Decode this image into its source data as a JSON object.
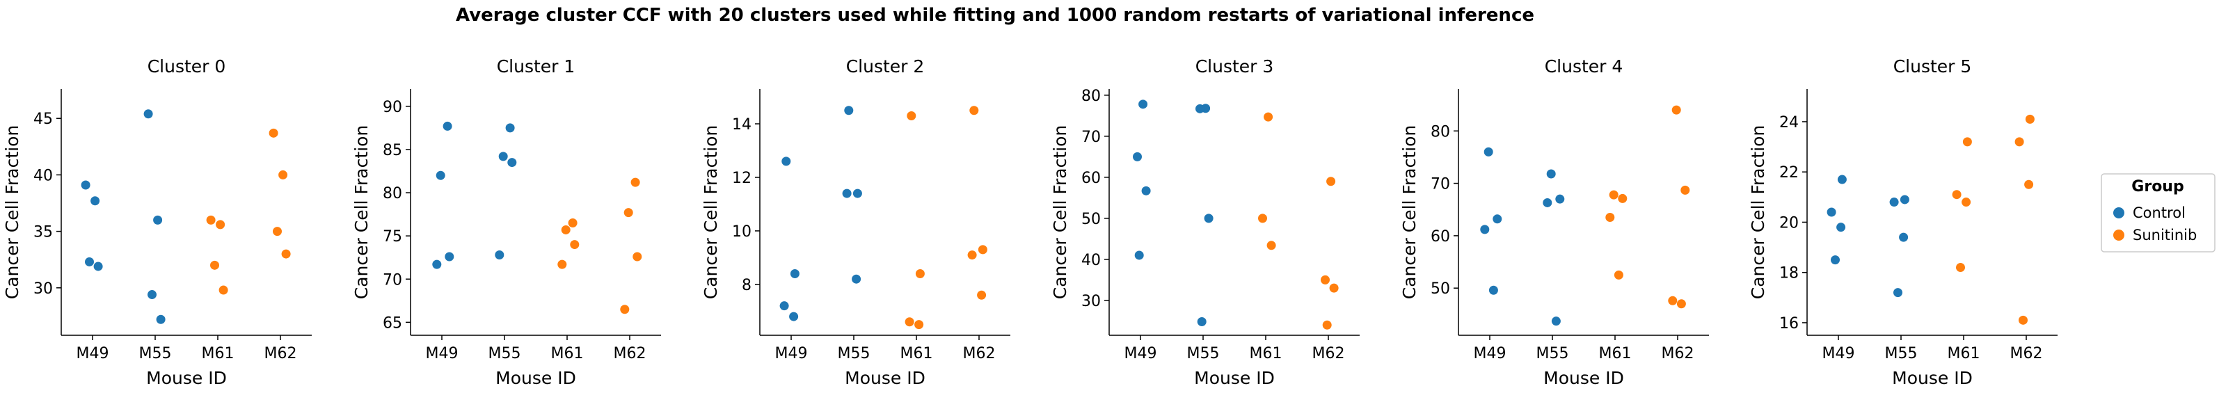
{
  "suptitle": "Average cluster CCF with 20 clusters used while fitting and 1000 random restarts of variational inference",
  "colors": {
    "Control": "#1f77b4",
    "Sunitinib": "#ff7f0e"
  },
  "legend": {
    "title": "Group",
    "placement": "right",
    "entries": [
      {
        "label": "Control",
        "color": "#1f77b4"
      },
      {
        "label": "Sunitinib",
        "color": "#ff7f0e"
      }
    ]
  },
  "chart_data": [
    {
      "type": "scatter",
      "title": "Cluster 0",
      "xlabel": "Mouse ID",
      "ylabel": "Cancer Cell Fraction",
      "categories": [
        "M49",
        "M55",
        "M61",
        "M62"
      ],
      "ylim": [
        25.8,
        47.6
      ],
      "yticks": [
        30,
        35,
        40,
        45
      ],
      "grid": false,
      "points": [
        {
          "category": "M49",
          "group": "Control",
          "y": 39.1
        },
        {
          "category": "M49",
          "group": "Control",
          "y": 37.7
        },
        {
          "category": "M49",
          "group": "Control",
          "y": 32.3
        },
        {
          "category": "M49",
          "group": "Control",
          "y": 31.9
        },
        {
          "category": "M55",
          "group": "Control",
          "y": 45.4
        },
        {
          "category": "M55",
          "group": "Control",
          "y": 36.0
        },
        {
          "category": "M55",
          "group": "Control",
          "y": 29.4
        },
        {
          "category": "M55",
          "group": "Control",
          "y": 27.2
        },
        {
          "category": "M61",
          "group": "Sunitinib",
          "y": 36.0
        },
        {
          "category": "M61",
          "group": "Sunitinib",
          "y": 35.6
        },
        {
          "category": "M61",
          "group": "Sunitinib",
          "y": 32.0
        },
        {
          "category": "M61",
          "group": "Sunitinib",
          "y": 29.8
        },
        {
          "category": "M62",
          "group": "Sunitinib",
          "y": 43.7
        },
        {
          "category": "M62",
          "group": "Sunitinib",
          "y": 40.0
        },
        {
          "category": "M62",
          "group": "Sunitinib",
          "y": 35.0
        },
        {
          "category": "M62",
          "group": "Sunitinib",
          "y": 33.0
        }
      ]
    },
    {
      "type": "scatter",
      "title": "Cluster 1",
      "xlabel": "Mouse ID",
      "ylabel": "Cancer Cell Fraction",
      "categories": [
        "M49",
        "M55",
        "M61",
        "M62"
      ],
      "ylim": [
        63.5,
        92.0
      ],
      "yticks": [
        65,
        70,
        75,
        80,
        85,
        90
      ],
      "grid": false,
      "points": [
        {
          "category": "M49",
          "group": "Control",
          "y": 87.7
        },
        {
          "category": "M49",
          "group": "Control",
          "y": 82.0
        },
        {
          "category": "M49",
          "group": "Control",
          "y": 72.6
        },
        {
          "category": "M49",
          "group": "Control",
          "y": 71.7
        },
        {
          "category": "M55",
          "group": "Control",
          "y": 87.5
        },
        {
          "category": "M55",
          "group": "Control",
          "y": 84.2
        },
        {
          "category": "M55",
          "group": "Control",
          "y": 83.5
        },
        {
          "category": "M55",
          "group": "Control",
          "y": 72.8
        },
        {
          "category": "M61",
          "group": "Sunitinib",
          "y": 76.5
        },
        {
          "category": "M61",
          "group": "Sunitinib",
          "y": 75.7
        },
        {
          "category": "M61",
          "group": "Sunitinib",
          "y": 74.0
        },
        {
          "category": "M61",
          "group": "Sunitinib",
          "y": 71.7
        },
        {
          "category": "M62",
          "group": "Sunitinib",
          "y": 81.2
        },
        {
          "category": "M62",
          "group": "Sunitinib",
          "y": 77.7
        },
        {
          "category": "M62",
          "group": "Sunitinib",
          "y": 72.6
        },
        {
          "category": "M62",
          "group": "Sunitinib",
          "y": 66.5
        }
      ]
    },
    {
      "type": "scatter",
      "title": "Cluster 2",
      "xlabel": "Mouse ID",
      "ylabel": "Cancer Cell Fraction",
      "categories": [
        "M49",
        "M55",
        "M61",
        "M62"
      ],
      "ylim": [
        6.1,
        15.3
      ],
      "yticks": [
        8,
        10,
        12,
        14
      ],
      "grid": false,
      "points": [
        {
          "category": "M49",
          "group": "Control",
          "y": 12.6
        },
        {
          "category": "M49",
          "group": "Control",
          "y": 8.4
        },
        {
          "category": "M49",
          "group": "Control",
          "y": 7.2
        },
        {
          "category": "M49",
          "group": "Control",
          "y": 6.8
        },
        {
          "category": "M55",
          "group": "Control",
          "y": 14.5
        },
        {
          "category": "M55",
          "group": "Control",
          "y": 11.4
        },
        {
          "category": "M55",
          "group": "Control",
          "y": 11.4
        },
        {
          "category": "M55",
          "group": "Control",
          "y": 8.2
        },
        {
          "category": "M61",
          "group": "Sunitinib",
          "y": 14.3
        },
        {
          "category": "M61",
          "group": "Sunitinib",
          "y": 8.4
        },
        {
          "category": "M61",
          "group": "Sunitinib",
          "y": 6.6
        },
        {
          "category": "M61",
          "group": "Sunitinib",
          "y": 6.5
        },
        {
          "category": "M62",
          "group": "Sunitinib",
          "y": 14.5
        },
        {
          "category": "M62",
          "group": "Sunitinib",
          "y": 9.3
        },
        {
          "category": "M62",
          "group": "Sunitinib",
          "y": 9.1
        },
        {
          "category": "M62",
          "group": "Sunitinib",
          "y": 7.6
        }
      ]
    },
    {
      "type": "scatter",
      "title": "Cluster 3",
      "xlabel": "Mouse ID",
      "ylabel": "Cancer Cell Fraction",
      "categories": [
        "M49",
        "M55",
        "M61",
        "M62"
      ],
      "ylim": [
        21.5,
        81.5
      ],
      "yticks": [
        30,
        40,
        50,
        60,
        70,
        80
      ],
      "grid": false,
      "points": [
        {
          "category": "M49",
          "group": "Control",
          "y": 77.8
        },
        {
          "category": "M49",
          "group": "Control",
          "y": 65.0
        },
        {
          "category": "M49",
          "group": "Control",
          "y": 56.7
        },
        {
          "category": "M49",
          "group": "Control",
          "y": 41.0
        },
        {
          "category": "M55",
          "group": "Control",
          "y": 76.8
        },
        {
          "category": "M55",
          "group": "Control",
          "y": 76.7
        },
        {
          "category": "M55",
          "group": "Control",
          "y": 50.0
        },
        {
          "category": "M55",
          "group": "Control",
          "y": 24.8
        },
        {
          "category": "M61",
          "group": "Sunitinib",
          "y": 74.7
        },
        {
          "category": "M61",
          "group": "Sunitinib",
          "y": 50.0
        },
        {
          "category": "M61",
          "group": "Sunitinib",
          "y": 43.4
        },
        {
          "category": "M62",
          "group": "Sunitinib",
          "y": 59.0
        },
        {
          "category": "M62",
          "group": "Sunitinib",
          "y": 35.0
        },
        {
          "category": "M62",
          "group": "Sunitinib",
          "y": 33.0
        },
        {
          "category": "M62",
          "group": "Sunitinib",
          "y": 24.0
        }
      ]
    },
    {
      "type": "scatter",
      "title": "Cluster 4",
      "xlabel": "Mouse ID",
      "ylabel": "Cancer Cell Fraction",
      "categories": [
        "M49",
        "M55",
        "M61",
        "M62"
      ],
      "ylim": [
        41.0,
        88.0
      ],
      "yticks": [
        50,
        60,
        70,
        80
      ],
      "grid": false,
      "points": [
        {
          "category": "M49",
          "group": "Control",
          "y": 76.0
        },
        {
          "category": "M49",
          "group": "Control",
          "y": 63.2
        },
        {
          "category": "M49",
          "group": "Control",
          "y": 61.2
        },
        {
          "category": "M49",
          "group": "Control",
          "y": 49.6
        },
        {
          "category": "M55",
          "group": "Control",
          "y": 71.8
        },
        {
          "category": "M55",
          "group": "Control",
          "y": 67.0
        },
        {
          "category": "M55",
          "group": "Control",
          "y": 66.3
        },
        {
          "category": "M55",
          "group": "Control",
          "y": 43.7
        },
        {
          "category": "M61",
          "group": "Sunitinib",
          "y": 67.8
        },
        {
          "category": "M61",
          "group": "Sunitinib",
          "y": 67.1
        },
        {
          "category": "M61",
          "group": "Sunitinib",
          "y": 63.5
        },
        {
          "category": "M61",
          "group": "Sunitinib",
          "y": 52.5
        },
        {
          "category": "M62",
          "group": "Sunitinib",
          "y": 84.0
        },
        {
          "category": "M62",
          "group": "Sunitinib",
          "y": 68.7
        },
        {
          "category": "M62",
          "group": "Sunitinib",
          "y": 47.6
        },
        {
          "category": "M62",
          "group": "Sunitinib",
          "y": 47.0
        }
      ]
    },
    {
      "type": "scatter",
      "title": "Cluster 5",
      "xlabel": "Mouse ID",
      "ylabel": "Cancer Cell Fraction",
      "categories": [
        "M49",
        "M55",
        "M61",
        "M62"
      ],
      "ylim": [
        15.5,
        25.3
      ],
      "yticks": [
        16,
        18,
        20,
        22,
        24
      ],
      "grid": false,
      "points": [
        {
          "category": "M49",
          "group": "Control",
          "y": 21.7
        },
        {
          "category": "M49",
          "group": "Control",
          "y": 20.4
        },
        {
          "category": "M49",
          "group": "Control",
          "y": 19.8
        },
        {
          "category": "M49",
          "group": "Control",
          "y": 18.5
        },
        {
          "category": "M55",
          "group": "Control",
          "y": 20.9
        },
        {
          "category": "M55",
          "group": "Control",
          "y": 20.8
        },
        {
          "category": "M55",
          "group": "Control",
          "y": 19.4
        },
        {
          "category": "M55",
          "group": "Control",
          "y": 17.2
        },
        {
          "category": "M61",
          "group": "Sunitinib",
          "y": 23.2
        },
        {
          "category": "M61",
          "group": "Sunitinib",
          "y": 21.1
        },
        {
          "category": "M61",
          "group": "Sunitinib",
          "y": 20.8
        },
        {
          "category": "M61",
          "group": "Sunitinib",
          "y": 18.2
        },
        {
          "category": "M62",
          "group": "Sunitinib",
          "y": 24.1
        },
        {
          "category": "M62",
          "group": "Sunitinib",
          "y": 23.2
        },
        {
          "category": "M62",
          "group": "Sunitinib",
          "y": 21.5
        },
        {
          "category": "M62",
          "group": "Sunitinib",
          "y": 16.1
        }
      ]
    }
  ]
}
